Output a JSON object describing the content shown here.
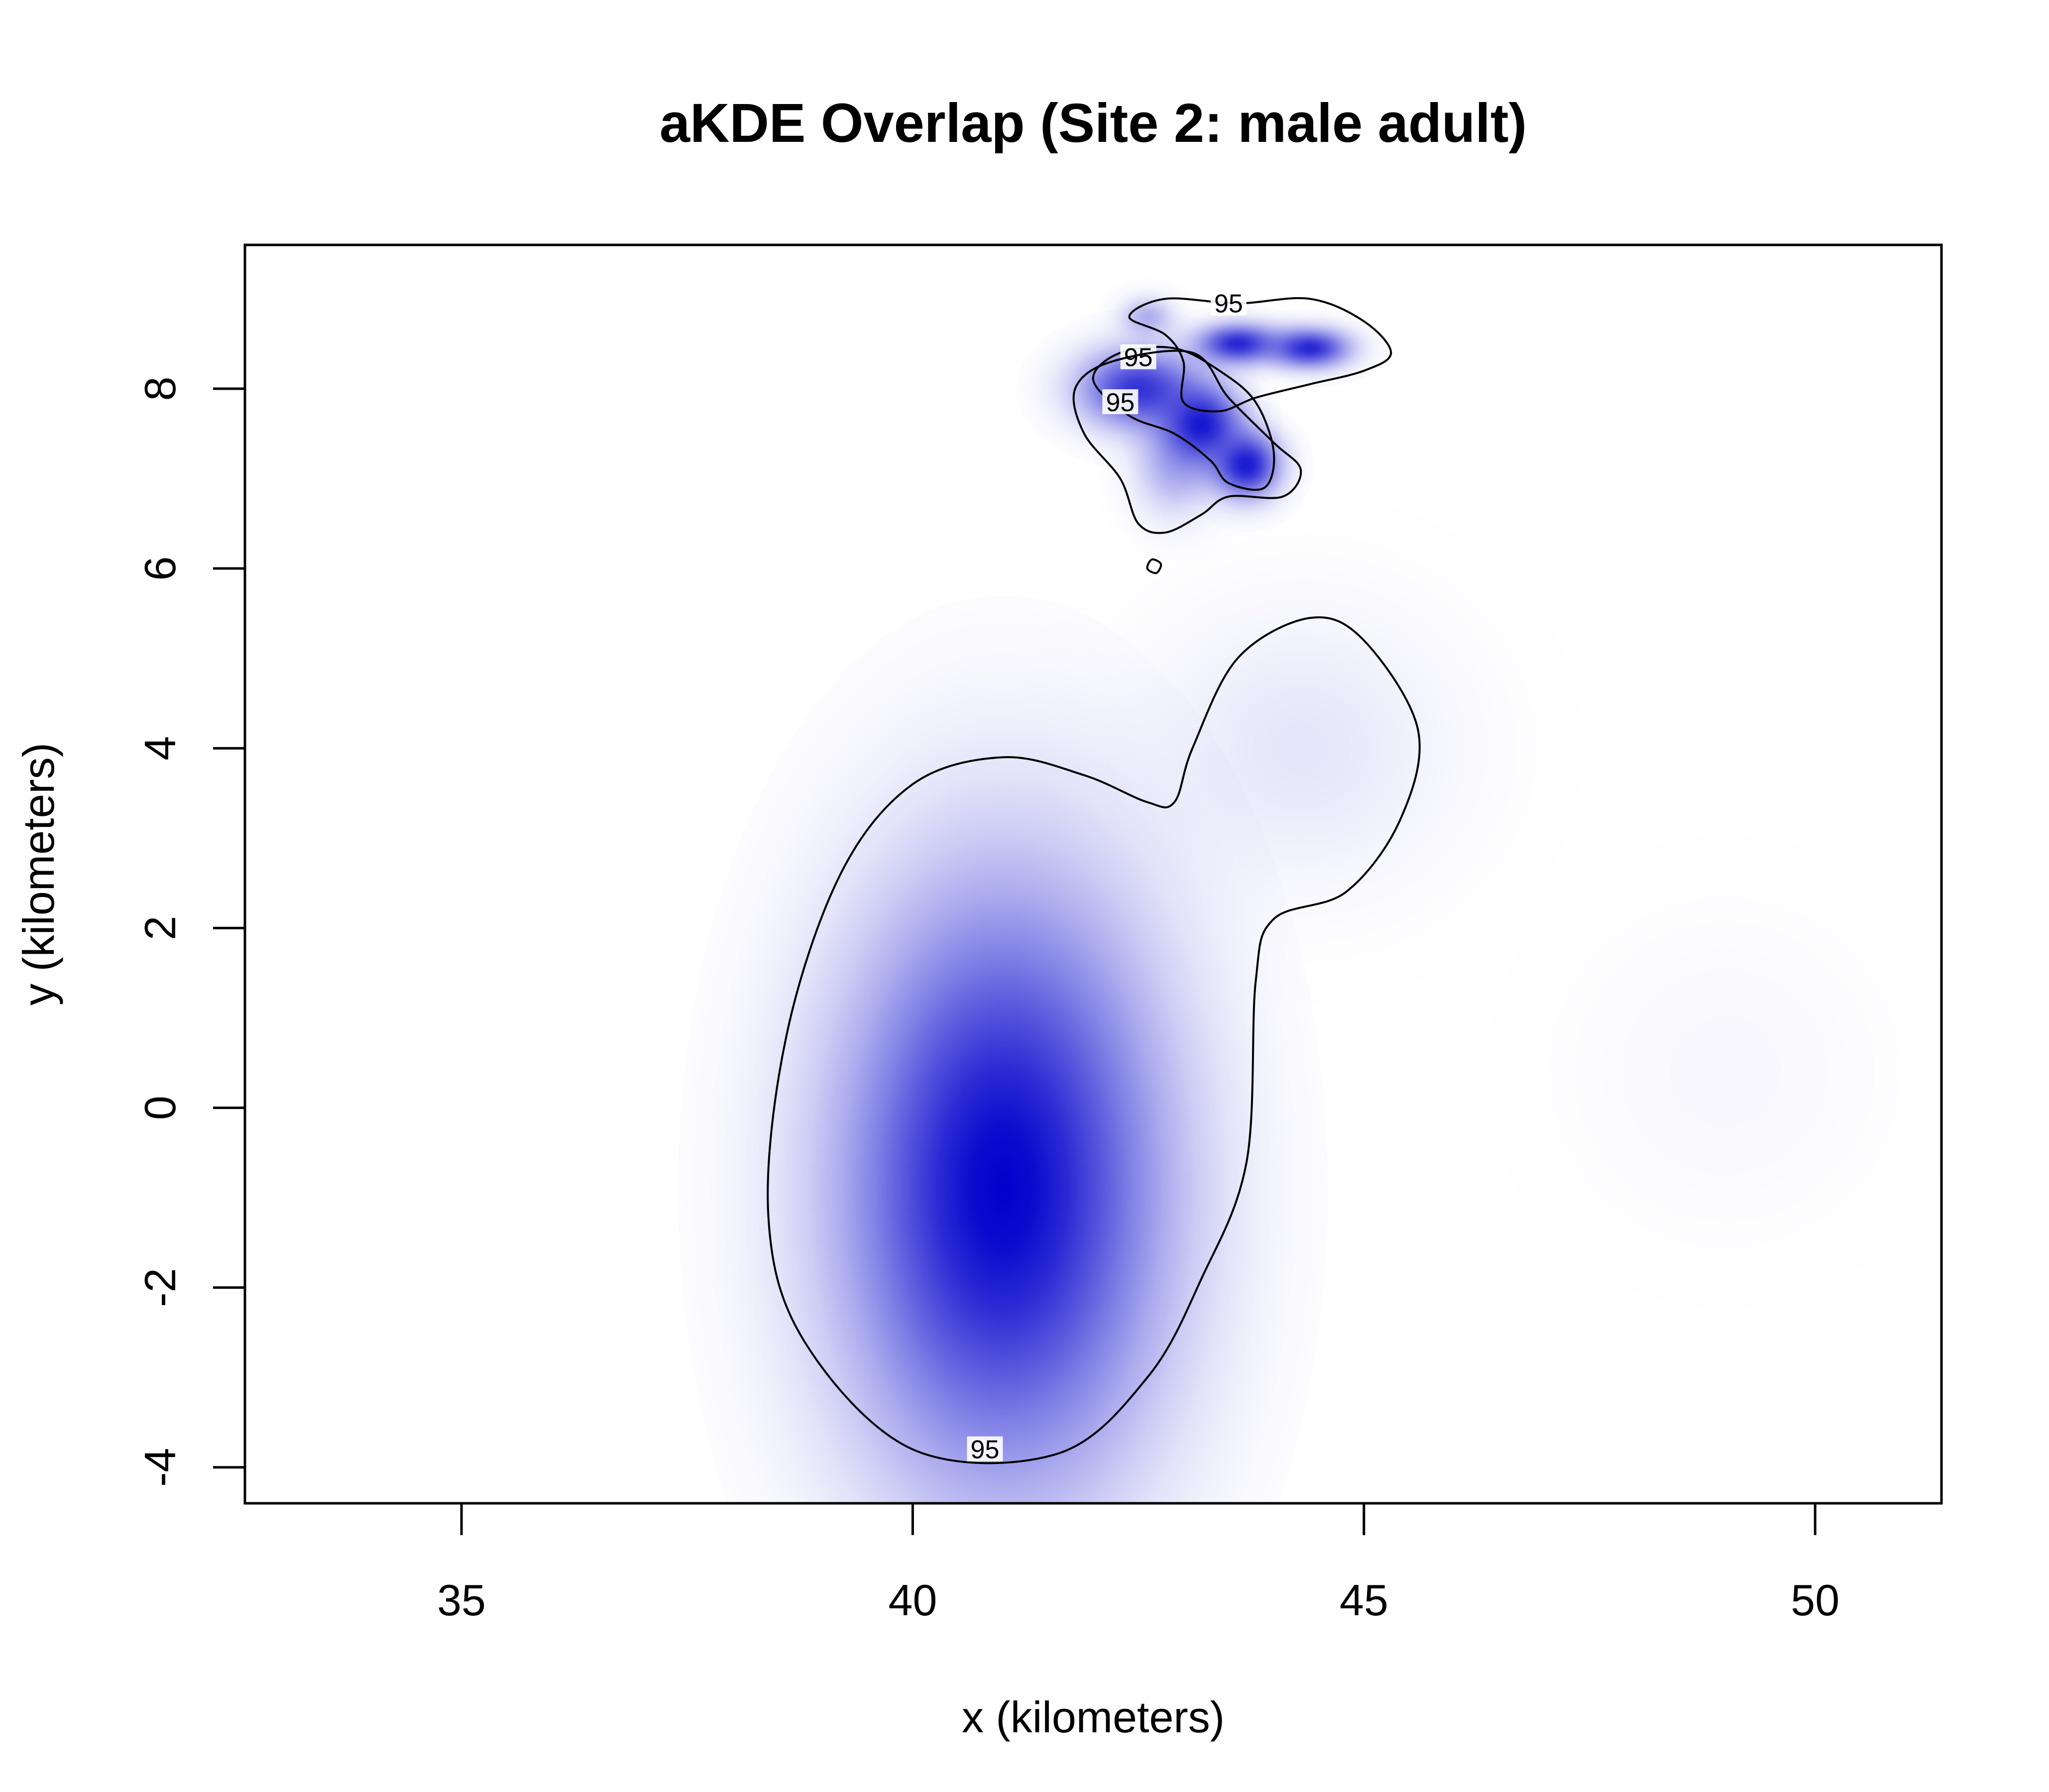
{
  "chart_data": {
    "type": "heatmap",
    "title": "aKDE Overlap (Site 2: male adult)",
    "xlabel": "x (kilometers)",
    "ylabel": "y (kilometers)",
    "xlim": [
      32.6,
      51.4
    ],
    "ylim": [
      -4.4,
      9.6
    ],
    "xticks": [
      35,
      40,
      45,
      50
    ],
    "yticks": [
      -4,
      -2,
      0,
      2,
      4,
      6,
      8
    ],
    "grid": false,
    "legend": "none",
    "colors": {
      "density": "#0000cc",
      "contour": "#000000",
      "frame": "#000000"
    },
    "density_kernels": [
      {
        "x": 41.0,
        "y": -0.9,
        "sx": 1.2,
        "sy": 2.2,
        "w": 1.0
      },
      {
        "x": 44.3,
        "y": 4.0,
        "sx": 1.1,
        "sy": 1.0,
        "w": 0.1
      },
      {
        "x": 49.0,
        "y": 0.4,
        "sx": 1.1,
        "sy": 1.1,
        "w": 0.03
      },
      {
        "x": 43.6,
        "y": 8.5,
        "sx": 0.3,
        "sy": 0.15,
        "w": 0.85
      },
      {
        "x": 44.4,
        "y": 8.45,
        "sx": 0.3,
        "sy": 0.15,
        "w": 0.85
      },
      {
        "x": 42.5,
        "y": 8.0,
        "sx": 0.45,
        "sy": 0.3,
        "w": 0.8
      },
      {
        "x": 43.2,
        "y": 7.6,
        "sx": 0.3,
        "sy": 0.3,
        "w": 0.9
      },
      {
        "x": 43.7,
        "y": 7.15,
        "sx": 0.25,
        "sy": 0.25,
        "w": 0.9
      },
      {
        "x": 42.9,
        "y": 7.1,
        "sx": 0.3,
        "sy": 0.35,
        "w": 0.3
      },
      {
        "x": 42.6,
        "y": 8.8,
        "sx": 0.2,
        "sy": 0.15,
        "w": 0.3
      }
    ],
    "contours": [
      {
        "level": "95",
        "label_positions": [
          [
            40.8,
            -3.8
          ]
        ],
        "points": [
          [
            40.0,
            -3.8
          ],
          [
            38.8,
            -2.6
          ],
          [
            38.4,
            -1.2
          ],
          [
            38.6,
            0.8
          ],
          [
            39.2,
            2.6
          ],
          [
            40.0,
            3.6
          ],
          [
            41.0,
            3.9
          ],
          [
            41.9,
            3.7
          ],
          [
            42.6,
            3.4
          ],
          [
            42.9,
            3.4
          ],
          [
            43.1,
            4.0
          ],
          [
            43.6,
            5.0
          ],
          [
            44.4,
            5.45
          ],
          [
            45.0,
            5.2
          ],
          [
            45.6,
            4.2
          ],
          [
            45.4,
            3.2
          ],
          [
            44.8,
            2.4
          ],
          [
            44.0,
            2.1
          ],
          [
            43.8,
            1.4
          ],
          [
            43.7,
            -0.6
          ],
          [
            43.2,
            -1.9
          ],
          [
            42.6,
            -3.0
          ],
          [
            41.6,
            -3.85
          ],
          [
            40.0,
            -3.8
          ]
        ]
      },
      {
        "level": "95",
        "label_positions": [
          [
            43.5,
            8.95
          ]
        ],
        "points": [
          [
            42.8,
            8.6
          ],
          [
            42.4,
            8.8
          ],
          [
            42.8,
            9.0
          ],
          [
            43.6,
            8.95
          ],
          [
            44.4,
            9.0
          ],
          [
            45.0,
            8.75
          ],
          [
            45.3,
            8.4
          ],
          [
            45.0,
            8.2
          ],
          [
            44.4,
            8.05
          ],
          [
            43.8,
            7.9
          ],
          [
            43.4,
            7.75
          ],
          [
            43.0,
            7.85
          ],
          [
            43.0,
            8.3
          ],
          [
            42.8,
            8.6
          ]
        ]
      },
      {
        "level": "95",
        "label_positions": [
          [
            42.5,
            8.35
          ]
        ],
        "points": [
          [
            42.3,
            8.4
          ],
          [
            42.0,
            8.1
          ],
          [
            42.4,
            7.7
          ],
          [
            42.9,
            7.5
          ],
          [
            43.3,
            7.2
          ],
          [
            43.5,
            6.95
          ],
          [
            43.9,
            6.9
          ],
          [
            44.0,
            7.3
          ],
          [
            43.8,
            7.85
          ],
          [
            43.4,
            8.2
          ],
          [
            42.9,
            8.45
          ],
          [
            42.3,
            8.4
          ]
        ]
      },
      {
        "level": "95",
        "label_positions": [
          [
            42.3,
            7.85
          ]
        ],
        "points": [
          [
            42.5,
            6.5
          ],
          [
            42.3,
            7.0
          ],
          [
            41.9,
            7.5
          ],
          [
            41.8,
            8.0
          ],
          [
            42.2,
            8.3
          ],
          [
            43.1,
            8.4
          ],
          [
            43.5,
            7.9
          ],
          [
            44.0,
            7.4
          ],
          [
            44.3,
            7.1
          ],
          [
            44.1,
            6.8
          ],
          [
            43.5,
            6.8
          ],
          [
            43.2,
            6.6
          ],
          [
            42.8,
            6.4
          ],
          [
            42.5,
            6.5
          ]
        ]
      },
      {
        "level": "",
        "label_positions": [],
        "points": [
          [
            42.6,
            6.0
          ],
          [
            42.65,
            6.1
          ],
          [
            42.75,
            6.05
          ],
          [
            42.7,
            5.95
          ],
          [
            42.6,
            6.0
          ]
        ]
      }
    ]
  }
}
